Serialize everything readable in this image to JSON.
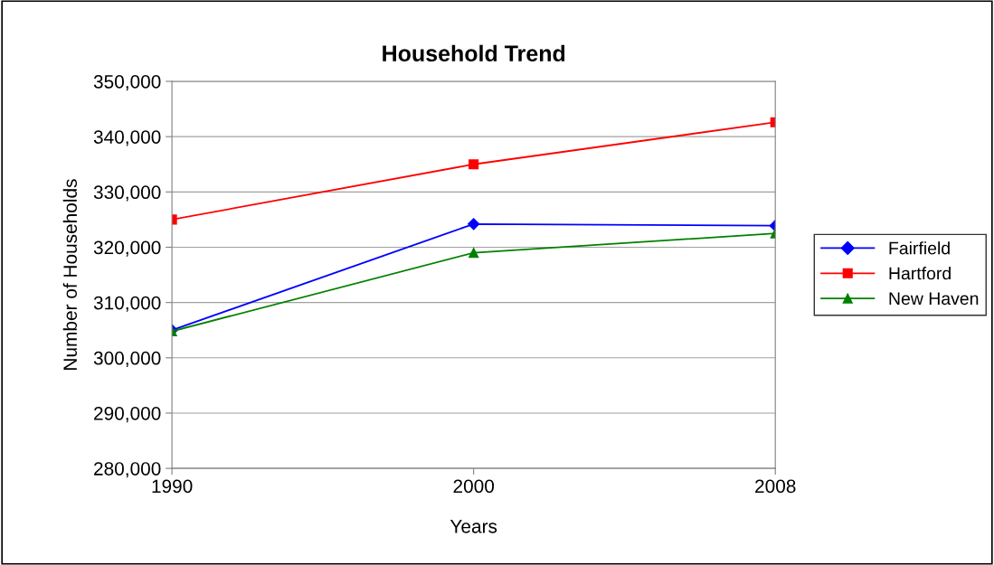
{
  "chart_data": {
    "type": "line",
    "title": "Household Trend",
    "xlabel": "Years",
    "ylabel": "Number of Households",
    "categories": [
      "1990",
      "2000",
      "2008"
    ],
    "series": [
      {
        "name": "Fairfield",
        "color": "#0000ff",
        "marker": "diamond",
        "values": [
          305000,
          324200,
          323900
        ]
      },
      {
        "name": "Hartford",
        "color": "#ff0000",
        "marker": "square",
        "values": [
          325000,
          335000,
          342600
        ]
      },
      {
        "name": "New Haven",
        "color": "#008000",
        "marker": "triangle",
        "values": [
          304800,
          319000,
          322500
        ]
      }
    ],
    "ylim": [
      280000,
      350000
    ],
    "yticks": [
      {
        "value": 280000,
        "label": "280,000"
      },
      {
        "value": 290000,
        "label": "290,000"
      },
      {
        "value": 300000,
        "label": "300,000"
      },
      {
        "value": 310000,
        "label": "310,000"
      },
      {
        "value": 320000,
        "label": "320,000"
      },
      {
        "value": 330000,
        "label": "330,000"
      },
      {
        "value": 340000,
        "label": "340,000"
      },
      {
        "value": 350000,
        "label": "350,000"
      }
    ],
    "grid": "y",
    "legend": "right"
  }
}
